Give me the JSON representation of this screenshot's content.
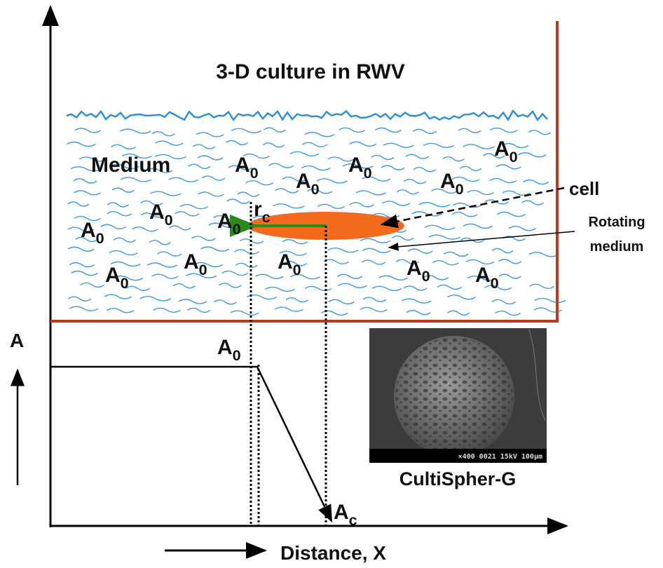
{
  "title": "3-D culture in RWV",
  "medium_label": "Medium",
  "concentration_labels": [
    {
      "main": "A",
      "sub": "0"
    },
    {
      "main": "A",
      "sub": "0"
    },
    {
      "main": "A",
      "sub": "0"
    },
    {
      "main": "A",
      "sub": "0"
    },
    {
      "main": "A",
      "sub": "0"
    },
    {
      "main": "A",
      "sub": "0"
    },
    {
      "main": "A",
      "sub": "0"
    },
    {
      "main": "A",
      "sub": "0"
    },
    {
      "main": "A",
      "sub": "0"
    },
    {
      "main": "A",
      "sub": "0"
    },
    {
      "main": "A",
      "sub": "0"
    },
    {
      "main": "A",
      "sub": "0"
    },
    {
      "main": "A",
      "sub": "0"
    }
  ],
  "cell_label": "cell",
  "rotating_medium_label": [
    "Rotating",
    "medium"
  ],
  "radius_label": {
    "main": "r",
    "sub": "c"
  },
  "graph": {
    "y_axis_label": "A",
    "x_axis_label": "Distance, X",
    "bulk_label": {
      "main": "A",
      "sub": "0"
    },
    "surface_label": {
      "main": "A",
      "sub": "c"
    }
  },
  "micrograph": {
    "caption": "CultiSpher-G",
    "scale_bar_text": "×400  0021  15kV 100µm"
  }
}
